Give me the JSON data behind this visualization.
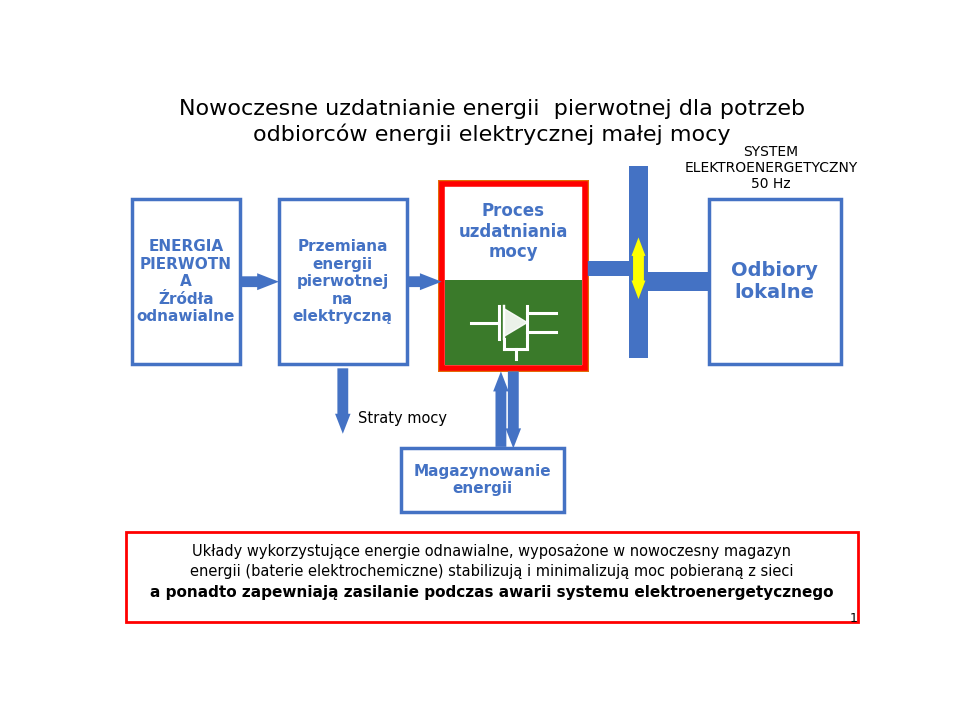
{
  "title_line1": "Nowoczesne uzdatnianie energii  pierwotnej dla potrzeb",
  "title_line2": "odbiorców energii elektrycznej małej mocy",
  "bg_color": "#ffffff",
  "blue": "#4472c4",
  "red": "#ff0000",
  "orange": "#e36c09",
  "green": "#3a7a2a",
  "yellow": "#ffff00",
  "box1_text": "ENERGIA\nPIERWOTN\nA\nŹródła\nodnawialne",
  "box2_text": "Przemiana\nenergii\npierwotnej\nna\nelektryczną",
  "box3_text": "Proces\nuzdatniania\nmocy",
  "box4_text": "Odbiory\nlokalne",
  "box5_text": "Magazynowanie\nenergii",
  "system_text": "SYSTEM\nELEKTROENERGETYCZNY\n50 Hz",
  "straty_text": "Straty mocy",
  "bottom_text1": "Układy wykorzystujące energie odnawialne, wyposażone w nowoczesny magazyn",
  "bottom_text2": "energii (baterie elektrochemiczne) stabilizują i minimalizują moc pobieraną z sieci",
  "bottom_text3": "a ponadto zapewniają zasilanie podczas awarii systemu elektroenergetycznego"
}
